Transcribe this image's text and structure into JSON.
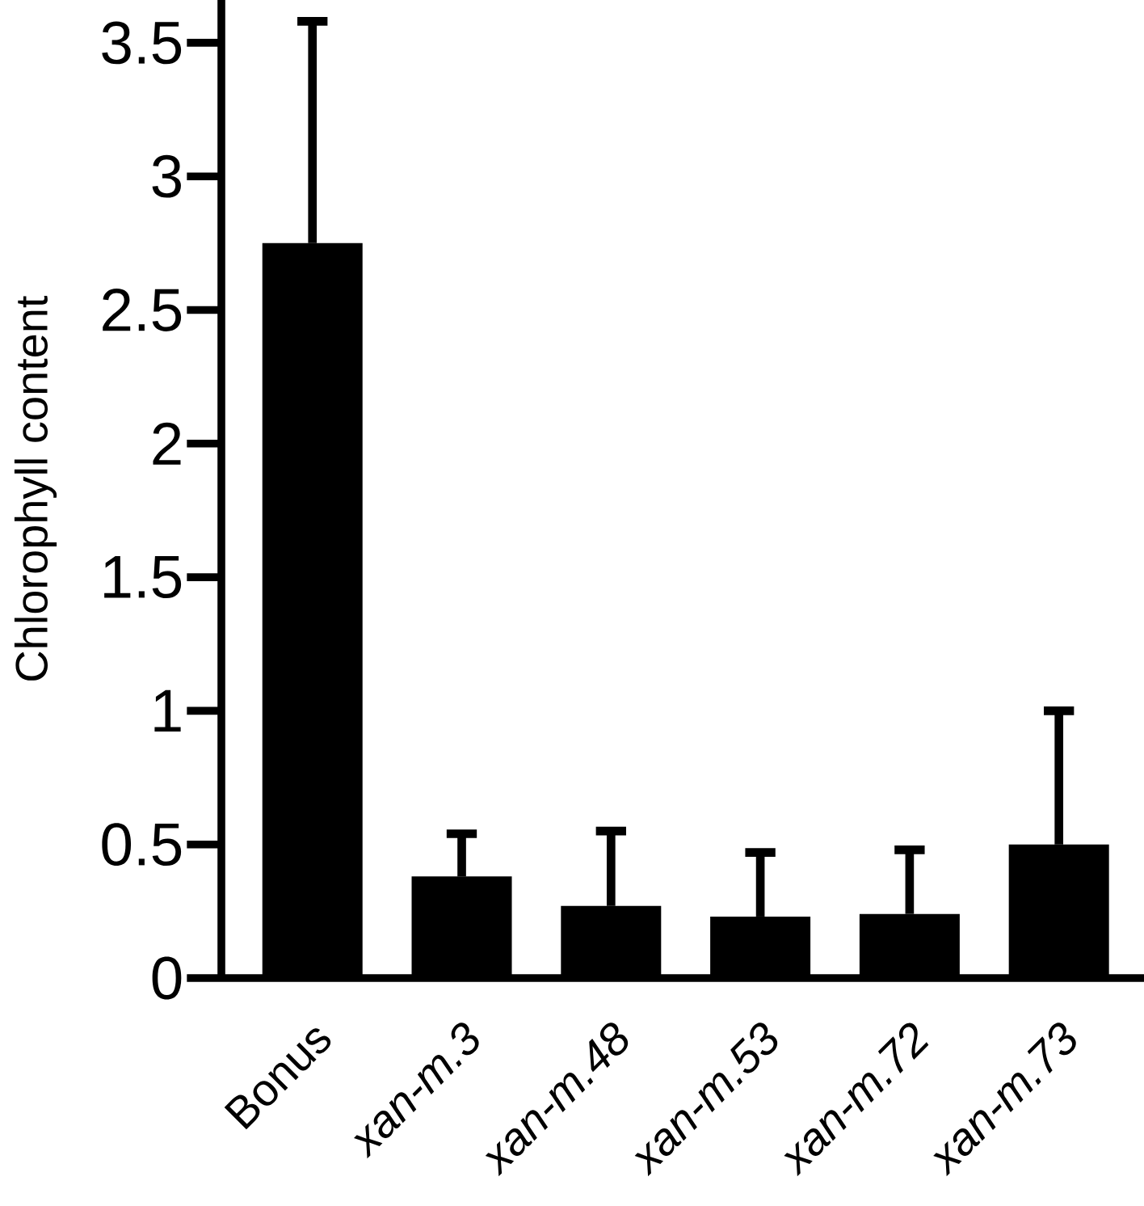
{
  "chart_data": {
    "type": "bar",
    "ylabel": "Chlorophyll content",
    "categories": [
      "Bonus",
      "*xan-m.3*",
      "*xan-m.48*",
      "*xan-m.53*",
      "*xan-m.72*",
      "*xan-m.73*"
    ],
    "values": [
      2.75,
      0.38,
      0.27,
      0.23,
      0.24,
      0.5
    ],
    "errors": [
      [
        2.75,
        3.58
      ],
      [
        0.38,
        0.54
      ],
      [
        0.27,
        0.55
      ],
      [
        0.23,
        0.47
      ],
      [
        0.24,
        0.48
      ],
      [
        0.5,
        1.0
      ]
    ],
    "color": "#000000",
    "ylim": [
      0,
      3.66
    ],
    "yticks": [
      0,
      0.5,
      1,
      1.5,
      2,
      2.5,
      3,
      3.5
    ],
    "grid": false
  }
}
